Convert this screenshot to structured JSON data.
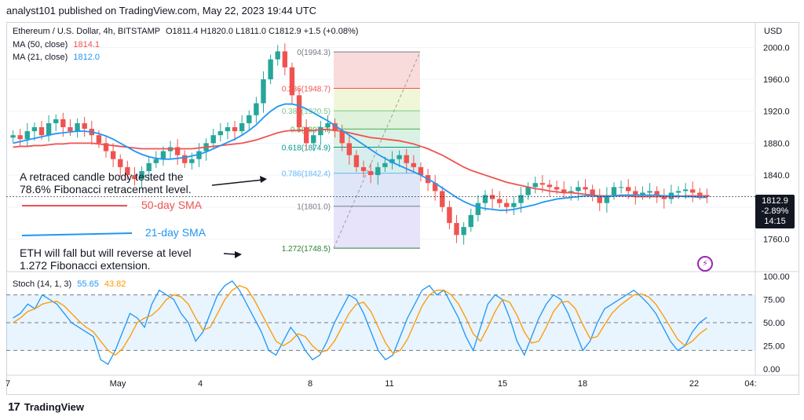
{
  "header": {
    "text": "analyst101 published on TradingView.com, May 22, 2023 19:44 UTC"
  },
  "legend": {
    "symbol": "Ethereum / U.S. Dollar, 4h, BITSTAMP",
    "ohlc": "O1811.4  H1820.0  L1811.0  C1812.9  +1.5 (+0.08%)",
    "ma50_label": "MA (50, close)",
    "ma50_value": "1814.1",
    "ma21_label": "MA (21, close)",
    "ma21_value": "1812.0",
    "stoch_label": "Stoch (14, 1, 3)",
    "stoch_k": "55.65",
    "stoch_d": "43.82"
  },
  "currency": "USD",
  "price_badge": {
    "price": "1812.9",
    "change": "-2.89%",
    "time": "14:15"
  },
  "annotations": {
    "a1_line1": "A retraced candle body tested the",
    "a1_line2": "78.6% Fibonacci retracement level.",
    "sma50": "50-day SMA",
    "sma21": "21-day SMA",
    "a2_line1": "ETH  will fall but will reverse at level",
    "a2_line2": "1.272 Fibonacci extension."
  },
  "footer": {
    "brand": "TradingView",
    "logo": "17"
  },
  "colors": {
    "up": "#26a69a",
    "down": "#ef5350",
    "ma50": "#ef5350",
    "ma21": "#2196f3",
    "stoch_k": "#2196f3",
    "stoch_d": "#ff9800"
  },
  "chart_data": [
    {
      "type": "line",
      "title": "Ethereum / U.S. Dollar, 4h, BITSTAMP",
      "x_tick_labels": [
        "7",
        "May",
        "4",
        "8",
        "11",
        "15",
        "18",
        "22",
        "04:"
      ],
      "y_ticks": [
        2000.0,
        1960.0,
        1920.0,
        1880.0,
        1840.0,
        1800.0,
        1760.0
      ],
      "ylim": [
        1725,
        2020
      ],
      "fibonacci": [
        {
          "label": "0(1994.3)",
          "value": 1994.3
        },
        {
          "label": "0.236(1948.7)",
          "value": 1948.7
        },
        {
          "label": "0.382(1920.5)",
          "value": 1920.5
        },
        {
          "label": "0.5(1897.7)",
          "value": 1897.7
        },
        {
          "label": "0.618(1874.9)",
          "value": 1874.9
        },
        {
          "label": "0.786(1842.4)",
          "value": 1842.4
        },
        {
          "label": "1(1801.0)",
          "value": 1801.0
        },
        {
          "label": "1.272(1748.5)",
          "value": 1748.5
        }
      ],
      "close_prices": [
        1890,
        1885,
        1895,
        1900,
        1890,
        1905,
        1910,
        1900,
        1895,
        1905,
        1898,
        1890,
        1880,
        1870,
        1860,
        1850,
        1840,
        1835,
        1845,
        1855,
        1860,
        1870,
        1875,
        1865,
        1855,
        1860,
        1870,
        1880,
        1890,
        1895,
        1900,
        1895,
        1905,
        1915,
        1930,
        1960,
        1985,
        1995,
        1975,
        1940,
        1900,
        1880,
        1890,
        1900,
        1905,
        1895,
        1880,
        1865,
        1850,
        1845,
        1840,
        1850,
        1855,
        1860,
        1865,
        1855,
        1850,
        1840,
        1830,
        1820,
        1800,
        1780,
        1765,
        1775,
        1790,
        1805,
        1815,
        1810,
        1805,
        1800,
        1805,
        1815,
        1825,
        1830,
        1828,
        1825,
        1822,
        1818,
        1820,
        1825,
        1822,
        1815,
        1805,
        1815,
        1825,
        1825,
        1820,
        1815,
        1818,
        1820,
        1815,
        1810,
        1818,
        1820,
        1822,
        1818,
        1815,
        1812.9
      ],
      "series": [
        {
          "name": "MA (50, close)",
          "values": [
            1875,
            1876,
            1876,
            1877,
            1877,
            1878,
            1879,
            1879,
            1880,
            1880,
            1880,
            1880,
            1879,
            1878,
            1877,
            1876,
            1875,
            1874,
            1873,
            1873,
            1873,
            1873,
            1873,
            1873,
            1873,
            1873,
            1874,
            1875,
            1876,
            1877,
            1878,
            1879,
            1880,
            1882,
            1884,
            1887,
            1890,
            1893,
            1895,
            1896,
            1896,
            1896,
            1896,
            1897,
            1897,
            1896,
            1895,
            1893,
            1891,
            1889,
            1887,
            1886,
            1885,
            1884,
            1883,
            1881,
            1879,
            1876,
            1873,
            1869,
            1865,
            1860,
            1855,
            1850,
            1846,
            1843,
            1840,
            1837,
            1834,
            1831,
            1829,
            1827,
            1825,
            1823,
            1822,
            1820,
            1819,
            1818,
            1818,
            1817,
            1816,
            1815,
            1814,
            1814,
            1814,
            1814,
            1814,
            1813,
            1813,
            1813,
            1813,
            1813,
            1813,
            1813,
            1814,
            1814,
            1814,
            1814.1
          ]
        },
        {
          "name": "MA (21, close)",
          "values": [
            1880,
            1882,
            1884,
            1886,
            1888,
            1890,
            1892,
            1893,
            1894,
            1895,
            1895,
            1894,
            1892,
            1889,
            1885,
            1880,
            1875,
            1870,
            1866,
            1863,
            1861,
            1860,
            1860,
            1861,
            1862,
            1864,
            1866,
            1869,
            1873,
            1877,
            1881,
            1885,
            1890,
            1896,
            1903,
            1912,
            1920,
            1926,
            1929,
            1929,
            1927,
            1923,
            1918,
            1913,
            1908,
            1902,
            1896,
            1890,
            1884,
            1878,
            1872,
            1866,
            1861,
            1856,
            1852,
            1848,
            1844,
            1840,
            1835,
            1830,
            1824,
            1818,
            1812,
            1807,
            1803,
            1800,
            1798,
            1797,
            1796,
            1796,
            1797,
            1799,
            1801,
            1803,
            1806,
            1808,
            1810,
            1811,
            1812,
            1813,
            1814,
            1814,
            1813,
            1813,
            1814,
            1815,
            1815,
            1815,
            1815,
            1815,
            1815,
            1814,
            1814,
            1814,
            1813,
            1813,
            1812,
            1812.0
          ]
        }
      ]
    },
    {
      "type": "line",
      "title": "Stoch (14, 1, 3)",
      "y_ticks": [
        100.0,
        75.0,
        50.0,
        25.0,
        0.0
      ],
      "ylim": [
        0,
        100
      ],
      "bands": [
        20,
        80
      ],
      "series": [
        {
          "name": "%K",
          "values": [
            55,
            60,
            70,
            65,
            80,
            75,
            70,
            60,
            50,
            45,
            40,
            35,
            10,
            5,
            20,
            40,
            60,
            55,
            45,
            70,
            85,
            80,
            75,
            60,
            50,
            30,
            40,
            60,
            80,
            90,
            95,
            85,
            70,
            55,
            40,
            20,
            15,
            30,
            45,
            35,
            20,
            10,
            15,
            30,
            50,
            65,
            80,
            75,
            60,
            40,
            20,
            10,
            15,
            35,
            55,
            70,
            85,
            90,
            80,
            85,
            70,
            55,
            35,
            20,
            45,
            70,
            80,
            75,
            55,
            30,
            15,
            35,
            55,
            70,
            80,
            75,
            60,
            40,
            20,
            30,
            50,
            65,
            70,
            75,
            80,
            85,
            78,
            70,
            60,
            45,
            30,
            20,
            25,
            40,
            50,
            55.65
          ]
        },
        {
          "name": "%D",
          "values": [
            50,
            55,
            62,
            65,
            70,
            72,
            73,
            68,
            60,
            52,
            45,
            40,
            30,
            20,
            15,
            22,
            35,
            50,
            55,
            58,
            65,
            75,
            80,
            78,
            70,
            55,
            42,
            45,
            60,
            75,
            85,
            90,
            87,
            75,
            60,
            45,
            30,
            25,
            30,
            38,
            35,
            25,
            18,
            20,
            30,
            45,
            60,
            70,
            72,
            62,
            45,
            28,
            17,
            20,
            32,
            50,
            68,
            80,
            85,
            85,
            80,
            70,
            55,
            38,
            30,
            45,
            62,
            75,
            72,
            58,
            40,
            28,
            30,
            45,
            62,
            72,
            73,
            65,
            48,
            33,
            35,
            48,
            60,
            68,
            74,
            80,
            81,
            78,
            70,
            58,
            45,
            32,
            25,
            30,
            38,
            43.82
          ]
        }
      ]
    }
  ]
}
